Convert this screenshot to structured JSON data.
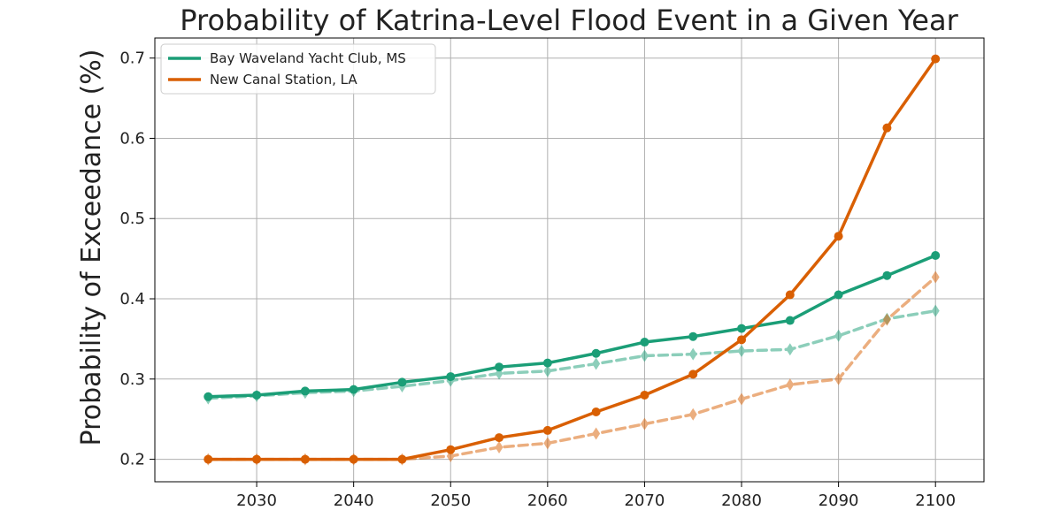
{
  "chart_data": {
    "type": "line",
    "title": "Probability of Katrina-Level Flood Event in a Given Year",
    "xlabel": "",
    "ylabel": "Probability of Exceedance (%)",
    "xlim": [
      2019.5,
      2105
    ],
    "ylim": [
      0.172,
      0.725
    ],
    "xticks": [
      2030,
      2040,
      2050,
      2060,
      2070,
      2080,
      2090,
      2100
    ],
    "yticks": [
      0.2,
      0.3,
      0.4,
      0.5,
      0.6,
      0.7
    ],
    "ytick_labels": [
      "0.2",
      "0.3",
      "0.4",
      "0.5",
      "0.6",
      "0.7"
    ],
    "grid": true,
    "legend_position": "top-left",
    "x": [
      2025,
      2030,
      2035,
      2040,
      2045,
      2050,
      2055,
      2060,
      2065,
      2070,
      2075,
      2080,
      2085,
      2090,
      2095,
      2100
    ],
    "series": [
      {
        "name": "Bay Waveland Yacht Club, MS",
        "color": "#1b9e77",
        "style": "solid",
        "marker": "circle",
        "in_legend": true,
        "values": [
          0.278,
          0.28,
          0.285,
          0.287,
          0.296,
          0.303,
          0.315,
          0.32,
          0.332,
          0.346,
          0.353,
          0.363,
          0.373,
          0.405,
          0.429,
          0.454
        ]
      },
      {
        "name": "New Canal Station, LA",
        "color": "#d95f02",
        "style": "solid",
        "marker": "circle",
        "in_legend": true,
        "values": [
          0.2,
          0.2,
          0.2,
          0.2,
          0.2,
          0.212,
          0.227,
          0.236,
          0.259,
          0.28,
          0.306,
          0.349,
          0.405,
          0.478,
          0.613,
          0.699
        ]
      },
      {
        "name": "",
        "color": "#1b9e77",
        "style": "dashed",
        "marker": "diamond",
        "in_legend": false,
        "values": [
          0.276,
          0.279,
          0.283,
          0.285,
          0.291,
          0.298,
          0.307,
          0.31,
          0.319,
          0.329,
          0.331,
          0.335,
          0.337,
          0.354,
          0.375,
          0.385
        ]
      },
      {
        "name": "",
        "color": "#d95f02",
        "style": "dashed",
        "marker": "diamond",
        "in_legend": false,
        "values": [
          0.2,
          0.2,
          0.2,
          0.2,
          0.2,
          0.204,
          0.215,
          0.22,
          0.232,
          0.244,
          0.256,
          0.275,
          0.293,
          0.3,
          0.374,
          0.427
        ]
      }
    ]
  }
}
